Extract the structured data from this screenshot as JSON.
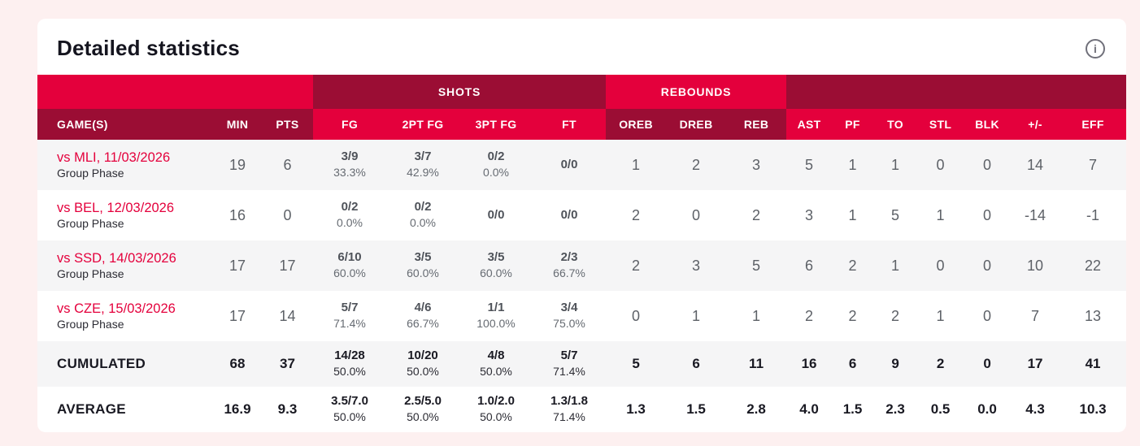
{
  "card": {
    "title": "Detailed statistics"
  },
  "colors": {
    "page_background": "#fdf0f0",
    "bright_red": "#e4003c",
    "dark_red": "#9b0d34",
    "link_red": "#e4003c",
    "row_alt_gray": "#f5f5f6"
  },
  "icons": {
    "info": "i"
  },
  "table": {
    "groups": [
      {
        "label": "",
        "span": 3,
        "band": "bright",
        "header": "dark"
      },
      {
        "label": "SHOTS",
        "span": 4,
        "band": "dark",
        "header": "bright"
      },
      {
        "label": "REBOUNDS",
        "span": 3,
        "band": "bright",
        "header": "dark"
      },
      {
        "label": "",
        "span": 7,
        "band": "dark",
        "header": "bright"
      }
    ],
    "columns": [
      "GAME(S)",
      "MIN",
      "PTS",
      "FG",
      "2PT FG",
      "3PT FG",
      "FT",
      "OREB",
      "DREB",
      "REB",
      "AST",
      "PF",
      "TO",
      "STL",
      "BLK",
      "+/-",
      "EFF"
    ],
    "rows": [
      {
        "game": "vs MLI, 11/03/2026",
        "phase": "Group Phase",
        "min": "19",
        "pts": "6",
        "fg": {
          "value": "3/9",
          "pct": "33.3%"
        },
        "fg2": {
          "value": "3/7",
          "pct": "42.9%"
        },
        "fg3": {
          "value": "0/2",
          "pct": "0.0%"
        },
        "ft": {
          "value": "0/0",
          "pct": ""
        },
        "stats": [
          "1",
          "2",
          "3",
          "5",
          "1",
          "1",
          "0",
          "0",
          "14",
          "7"
        ]
      },
      {
        "game": "vs BEL, 12/03/2026",
        "phase": "Group Phase",
        "min": "16",
        "pts": "0",
        "fg": {
          "value": "0/2",
          "pct": "0.0%"
        },
        "fg2": {
          "value": "0/2",
          "pct": "0.0%"
        },
        "fg3": {
          "value": "0/0",
          "pct": ""
        },
        "ft": {
          "value": "0/0",
          "pct": ""
        },
        "stats": [
          "2",
          "0",
          "2",
          "3",
          "1",
          "5",
          "1",
          "0",
          "-14",
          "-1"
        ]
      },
      {
        "game": "vs SSD, 14/03/2026",
        "phase": "Group Phase",
        "min": "17",
        "pts": "17",
        "fg": {
          "value": "6/10",
          "pct": "60.0%"
        },
        "fg2": {
          "value": "3/5",
          "pct": "60.0%"
        },
        "fg3": {
          "value": "3/5",
          "pct": "60.0%"
        },
        "ft": {
          "value": "2/3",
          "pct": "66.7%"
        },
        "stats": [
          "2",
          "3",
          "5",
          "6",
          "2",
          "1",
          "0",
          "0",
          "10",
          "22"
        ]
      },
      {
        "game": "vs CZE, 15/03/2026",
        "phase": "Group Phase",
        "min": "17",
        "pts": "14",
        "fg": {
          "value": "5/7",
          "pct": "71.4%"
        },
        "fg2": {
          "value": "4/6",
          "pct": "66.7%"
        },
        "fg3": {
          "value": "1/1",
          "pct": "100.0%"
        },
        "ft": {
          "value": "3/4",
          "pct": "75.0%"
        },
        "stats": [
          "0",
          "1",
          "1",
          "2",
          "2",
          "2",
          "1",
          "0",
          "7",
          "13"
        ]
      }
    ],
    "totals": [
      {
        "label": "CUMULATED",
        "min": "68",
        "pts": "37",
        "fg": {
          "value": "14/28",
          "pct": "50.0%"
        },
        "fg2": {
          "value": "10/20",
          "pct": "50.0%"
        },
        "fg3": {
          "value": "4/8",
          "pct": "50.0%"
        },
        "ft": {
          "value": "5/7",
          "pct": "71.4%"
        },
        "stats": [
          "5",
          "6",
          "11",
          "16",
          "6",
          "9",
          "2",
          "0",
          "17",
          "41"
        ]
      },
      {
        "label": "AVERAGE",
        "min": "16.9",
        "pts": "9.3",
        "fg": {
          "value": "3.5/7.0",
          "pct": "50.0%"
        },
        "fg2": {
          "value": "2.5/5.0",
          "pct": "50.0%"
        },
        "fg3": {
          "value": "1.0/2.0",
          "pct": "50.0%"
        },
        "ft": {
          "value": "1.3/1.8",
          "pct": "71.4%"
        },
        "stats": [
          "1.3",
          "1.5",
          "2.8",
          "4.0",
          "1.5",
          "2.3",
          "0.5",
          "0.0",
          "4.3",
          "10.3"
        ]
      }
    ]
  }
}
